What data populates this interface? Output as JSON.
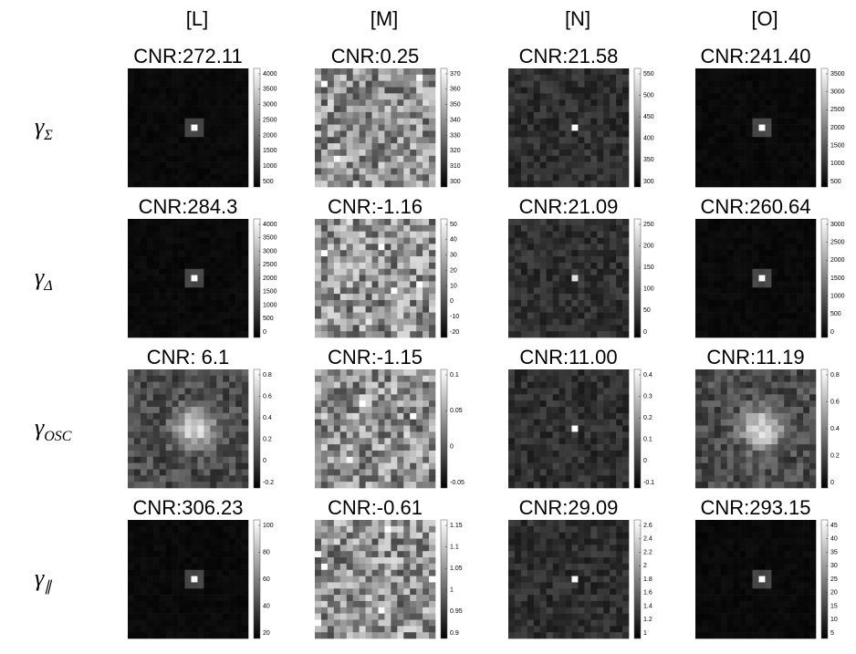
{
  "columns": [
    "[L]",
    "[M]",
    "[N]",
    "[O]"
  ],
  "rows": [
    {
      "symbol": "γ",
      "subscript": "Σ",
      "panels": [
        {
          "cnr": "CNR:272.11",
          "colorbar": [
            "4000",
            "3500",
            "3000",
            "2500",
            "2000",
            "1500",
            "1000",
            "500"
          ]
        },
        {
          "cnr": "CNR:0.25",
          "colorbar": [
            "370",
            "360",
            "350",
            "340",
            "330",
            "320",
            "310",
            "300"
          ]
        },
        {
          "cnr": "CNR:21.58",
          "colorbar": [
            "550",
            "500",
            "450",
            "400",
            "350",
            "300"
          ]
        },
        {
          "cnr": "CNR:241.40",
          "colorbar": [
            "3500",
            "3000",
            "2500",
            "2000",
            "1500",
            "1000",
            "500"
          ]
        }
      ]
    },
    {
      "symbol": "γ",
      "subscript": "Δ",
      "panels": [
        {
          "cnr": "CNR:284.3",
          "colorbar": [
            "4000",
            "3500",
            "3000",
            "2500",
            "2000",
            "1500",
            "1000",
            "500",
            "0"
          ]
        },
        {
          "cnr": "CNR:-1.16",
          "colorbar": [
            "50",
            "40",
            "30",
            "20",
            "10",
            "0",
            "-10",
            "-20"
          ]
        },
        {
          "cnr": "CNR:21.09",
          "colorbar": [
            "250",
            "200",
            "150",
            "100",
            "50",
            "0"
          ]
        },
        {
          "cnr": "CNR:260.64",
          "colorbar": [
            "3000",
            "2500",
            "2000",
            "1500",
            "1000",
            "500",
            "0"
          ]
        }
      ]
    },
    {
      "symbol": "γ",
      "subscript": "OSC",
      "panels": [
        {
          "cnr": "CNR: 6.1",
          "colorbar": [
            "0.8",
            "0.6",
            "0.4",
            "0.2",
            "0",
            "-0.2"
          ]
        },
        {
          "cnr": "CNR:-1.15",
          "colorbar": [
            "0.1",
            "0.05",
            "0",
            "-0.05"
          ]
        },
        {
          "cnr": "CNR:11.00",
          "colorbar": [
            "0.4",
            "0.3",
            "0.2",
            "0.1",
            "0",
            "-0.1"
          ]
        },
        {
          "cnr": "CNR:11.19",
          "colorbar": [
            "0.8",
            "0.6",
            "0.4",
            "0.2",
            "0"
          ]
        }
      ]
    },
    {
      "symbol": "γ",
      "subscript": "∥",
      "panels": [
        {
          "cnr": "CNR:306.23",
          "colorbar": [
            "100",
            "80",
            "60",
            "40",
            "20"
          ]
        },
        {
          "cnr": "CNR:-0.61",
          "colorbar": [
            "1.15",
            "1.1",
            "1.05",
            "1",
            "0.95",
            "0.9"
          ]
        },
        {
          "cnr": "CNR:29.09",
          "colorbar": [
            "2.6",
            "2.4",
            "2.2",
            "2",
            "1.8",
            "1.6",
            "1.4",
            "1.2",
            "1"
          ]
        },
        {
          "cnr": "CNR:293.15",
          "colorbar": [
            "45",
            "40",
            "35",
            "30",
            "25",
            "20",
            "15",
            "10",
            "5"
          ]
        }
      ]
    }
  ]
}
